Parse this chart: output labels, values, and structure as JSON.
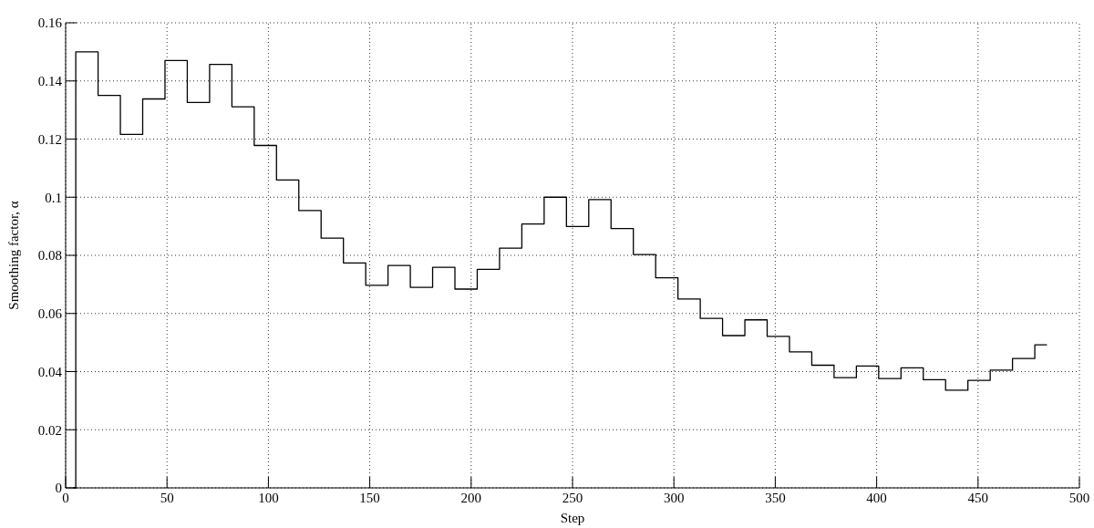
{
  "chart_data": {
    "type": "step",
    "xlabel": "Step",
    "ylabel": "Smoothing factor, α",
    "xlim": [
      0,
      500
    ],
    "ylim": [
      0,
      0.16
    ],
    "xticks": [
      0,
      50,
      100,
      150,
      200,
      250,
      300,
      350,
      400,
      450,
      500
    ],
    "yticks": [
      0,
      0.02,
      0.04,
      0.06,
      0.08,
      0.1,
      0.12,
      0.14,
      0.16
    ],
    "grid": true,
    "line_style": "solid",
    "marker": "none",
    "series": [
      {
        "color": "#000000",
        "x": [
          4,
          5,
          16,
          27,
          38,
          49,
          60,
          71,
          82,
          93,
          104,
          115,
          126,
          137,
          148,
          159,
          170,
          181,
          192,
          203,
          214,
          225,
          236,
          247,
          258,
          269,
          280,
          291,
          302,
          313,
          324,
          335,
          346,
          357,
          368,
          379,
          390,
          401,
          412,
          423,
          434,
          445,
          456,
          467,
          478,
          484
        ],
        "values": [
          0,
          0.15,
          0.135,
          0.1216,
          0.1338,
          0.147,
          0.1326,
          0.1457,
          0.1311,
          0.1178,
          0.1059,
          0.0954,
          0.0859,
          0.0774,
          0.0697,
          0.0765,
          0.069,
          0.0759,
          0.0684,
          0.0752,
          0.0825,
          0.0908,
          0.1,
          0.0899,
          0.0992,
          0.0892,
          0.0803,
          0.0723,
          0.065,
          0.0583,
          0.0524,
          0.0578,
          0.0521,
          0.0468,
          0.0422,
          0.0379,
          0.0419,
          0.0376,
          0.0413,
          0.0372,
          0.0336,
          0.037,
          0.0405,
          0.0445,
          0.0492,
          0.0492
        ]
      }
    ]
  }
}
